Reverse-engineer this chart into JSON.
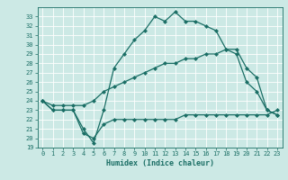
{
  "xlabel": "Humidex (Indice chaleur)",
  "ylabel": "",
  "background_color": "#cce9e5",
  "grid_color": "#b0d8d3",
  "line_color": "#1a6e65",
  "xlim": [
    -0.5,
    23.5
  ],
  "ylim": [
    19,
    34
  ],
  "xticks": [
    0,
    1,
    2,
    3,
    4,
    5,
    6,
    7,
    8,
    9,
    10,
    11,
    12,
    13,
    14,
    15,
    16,
    17,
    18,
    19,
    20,
    21,
    22,
    23
  ],
  "yticks": [
    19,
    20,
    21,
    22,
    23,
    24,
    25,
    26,
    27,
    28,
    29,
    30,
    31,
    32,
    33
  ],
  "line1_x": [
    0,
    1,
    2,
    3,
    4,
    5,
    6,
    7,
    8,
    9,
    10,
    11,
    12,
    13,
    14,
    15,
    16,
    17,
    18,
    19,
    20,
    21,
    22,
    23
  ],
  "line1_y": [
    24.0,
    23.0,
    23.0,
    23.0,
    21.0,
    19.5,
    23.0,
    27.5,
    29.0,
    30.5,
    31.5,
    33.0,
    32.5,
    33.5,
    32.5,
    32.5,
    32.0,
    31.5,
    29.5,
    29.0,
    26.0,
    25.0,
    23.0,
    22.5
  ],
  "line2_x": [
    0,
    1,
    2,
    3,
    4,
    5,
    6,
    7,
    8,
    9,
    10,
    11,
    12,
    13,
    14,
    15,
    16,
    17,
    18,
    19,
    20,
    21,
    22,
    23
  ],
  "line2_y": [
    24.0,
    23.5,
    23.5,
    23.5,
    23.5,
    24.0,
    25.0,
    25.5,
    26.0,
    26.5,
    27.0,
    27.5,
    28.0,
    28.0,
    28.5,
    28.5,
    29.0,
    29.0,
    29.5,
    29.5,
    27.5,
    26.5,
    23.0,
    22.5
  ],
  "line3_x": [
    0,
    1,
    2,
    3,
    4,
    5,
    6,
    7,
    8,
    9,
    10,
    11,
    12,
    13,
    14,
    15,
    16,
    17,
    18,
    19,
    20,
    21,
    22,
    23
  ],
  "line3_y": [
    24.0,
    23.0,
    23.0,
    23.0,
    20.5,
    20.0,
    21.5,
    22.0,
    22.0,
    22.0,
    22.0,
    22.0,
    22.0,
    22.0,
    22.5,
    22.5,
    22.5,
    22.5,
    22.5,
    22.5,
    22.5,
    22.5,
    22.5,
    23.0
  ]
}
